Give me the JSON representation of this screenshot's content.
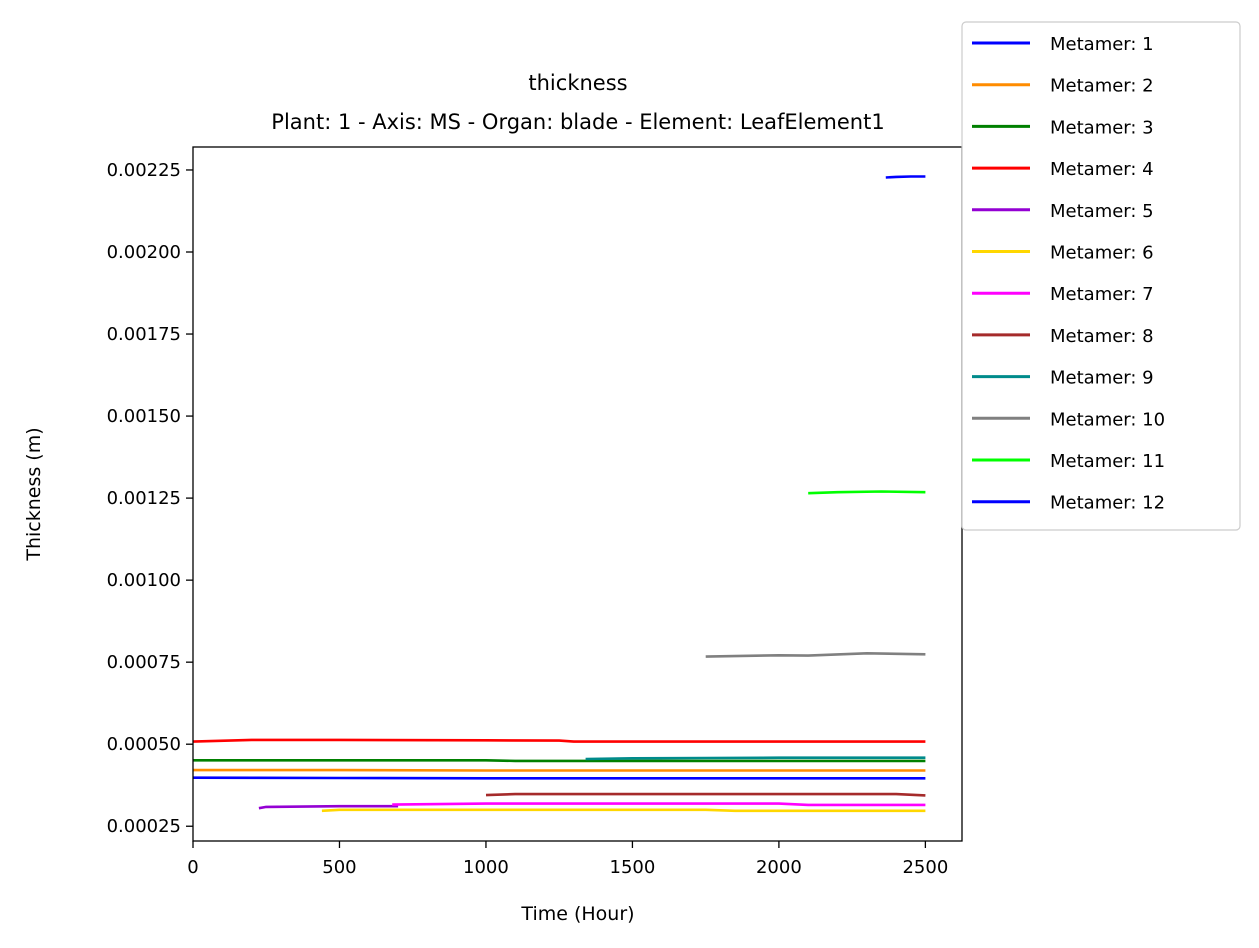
{
  "chart_data": {
    "type": "line",
    "title": "thickness",
    "subtitle": "Plant: 1 - Axis: MS - Organ: blade - Element: LeafElement1",
    "xlabel": "Time (Hour)",
    "ylabel": "Thickness (m)",
    "xlim": [
      0,
      2625
    ],
    "ylim": [
      0.000205,
      0.00232
    ],
    "xticks": [
      0,
      500,
      1000,
      1500,
      2000,
      2500
    ],
    "xtick_labels": [
      "0",
      "500",
      "1000",
      "1500",
      "2000",
      "2500"
    ],
    "yticks": [
      0.00025,
      0.0005,
      0.00075,
      0.001,
      0.00125,
      0.0015,
      0.00175,
      0.002,
      0.00225
    ],
    "ytick_labels": [
      "0.00025",
      "0.00050",
      "0.00075",
      "0.00100",
      "0.00125",
      "0.00150",
      "0.00175",
      "0.00200",
      "0.00225"
    ],
    "grid": false,
    "legend_position": "upper-right-outside",
    "series": [
      {
        "name": "Metamer: 1",
        "color": "#0000ff",
        "x": [
          0,
          500,
          1000,
          1500,
          2000,
          2500
        ],
        "y": [
          0.000398,
          0.000397,
          0.000396,
          0.000396,
          0.000396,
          0.000396
        ]
      },
      {
        "name": "Metamer: 2",
        "color": "#ff8c00",
        "x": [
          0,
          500,
          1000,
          1500,
          2000,
          2500
        ],
        "y": [
          0.000421,
          0.000421,
          0.00042,
          0.00042,
          0.00042,
          0.00042
        ]
      },
      {
        "name": "Metamer: 3",
        "color": "#008000",
        "x": [
          0,
          500,
          1000,
          1100,
          1500,
          2000,
          2500
        ],
        "y": [
          0.000451,
          0.000451,
          0.000451,
          0.000449,
          0.000449,
          0.000449,
          0.000449
        ]
      },
      {
        "name": "Metamer: 4",
        "color": "#ff0000",
        "x": [
          0,
          200,
          500,
          1000,
          1250,
          1300,
          2000,
          2500
        ],
        "y": [
          0.000508,
          0.000513,
          0.000513,
          0.000512,
          0.000511,
          0.000508,
          0.000508,
          0.000508
        ]
      },
      {
        "name": "Metamer: 5",
        "color": "#9400d3",
        "x": [
          225,
          250,
          500,
          700
        ],
        "y": [
          0.000305,
          0.000309,
          0.000311,
          0.000311
        ]
      },
      {
        "name": "Metamer: 6",
        "color": "#ffd700",
        "x": [
          440,
          500,
          1000,
          1500,
          1750,
          1850,
          2000,
          2500
        ],
        "y": [
          0.000297,
          0.0003,
          0.0003,
          0.0003,
          0.0003,
          0.000297,
          0.000297,
          0.000297
        ]
      },
      {
        "name": "Metamer: 7",
        "color": "#ff00ff",
        "x": [
          680,
          1000,
          1500,
          2000,
          2100,
          2500
        ],
        "y": [
          0.000316,
          0.000319,
          0.000319,
          0.000319,
          0.000315,
          0.000315
        ]
      },
      {
        "name": "Metamer: 8",
        "color": "#a52a2a",
        "x": [
          1000,
          1100,
          1500,
          2000,
          2400,
          2500
        ],
        "y": [
          0.000345,
          0.000348,
          0.000348,
          0.000348,
          0.000348,
          0.000344
        ]
      },
      {
        "name": "Metamer: 9",
        "color": "#008b8b",
        "x": [
          1340,
          1500,
          1750,
          2000,
          2500
        ],
        "y": [
          0.000455,
          0.000457,
          0.000458,
          0.000459,
          0.000459
        ]
      },
      {
        "name": "Metamer: 10",
        "color": "#808080",
        "x": [
          1750,
          2000,
          2100,
          2300,
          2500
        ],
        "y": [
          0.000767,
          0.000771,
          0.00077,
          0.000777,
          0.000774
        ]
      },
      {
        "name": "Metamer: 11",
        "color": "#00ff00",
        "x": [
          2100,
          2200,
          2350,
          2500
        ],
        "y": [
          0.001265,
          0.001268,
          0.00127,
          0.001268
        ]
      },
      {
        "name": "Metamer: 12",
        "color": "#0000ff",
        "x": [
          2365,
          2400,
          2450,
          2500
        ],
        "y": [
          0.002227,
          0.002229,
          0.00223,
          0.00223
        ]
      }
    ]
  }
}
